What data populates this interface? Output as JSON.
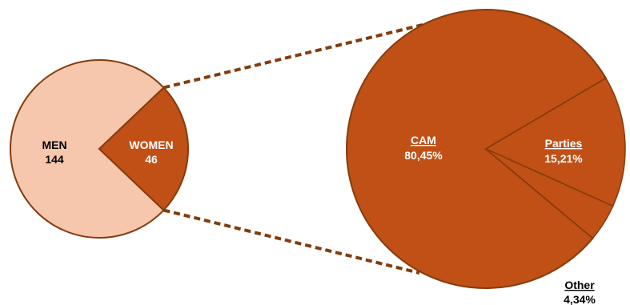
{
  "chart_data": [
    {
      "type": "pie",
      "title": "",
      "slices": [
        {
          "label": "MEN",
          "value_text": "144",
          "value": 144,
          "color": "#f6c6ad"
        },
        {
          "label": "WOMEN",
          "value_text": "46",
          "value": 46,
          "color": "#c05016"
        }
      ],
      "legend": "none"
    },
    {
      "type": "pie",
      "title": "",
      "slices": [
        {
          "label": "CAM",
          "value_text": "80,45%",
          "value": 80.45,
          "color": "#c05016"
        },
        {
          "label": "Parties",
          "value_text": "15,21%",
          "value": 15.21,
          "color": "#c05016"
        },
        {
          "label": "Other",
          "value_text": "4,34%",
          "value": 4.34,
          "color": "#c05016"
        }
      ],
      "legend": "none"
    }
  ],
  "colors": {
    "edge": "#843c0c",
    "connector": "#843c0c"
  }
}
